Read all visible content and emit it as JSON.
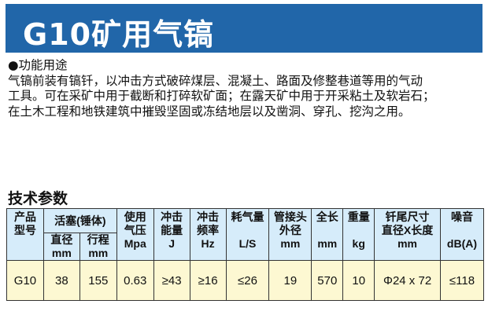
{
  "title": "G10矿用气镐",
  "function": {
    "heading": "●功能用途",
    "lines": [
      "气镐前装有镐钎，以冲击方式破碎煤层、混凝土、路面及修整巷道等用的气动",
      "工具。可在采矿中用于截断和打碎软矿面；在露天矿中用于开采粘土及软岩石；",
      "在土木工程和地铁建筑中摧毁坚固或冻结地层以及凿洞、穿孔、挖沟之用。"
    ]
  },
  "specs": {
    "heading": "技术参数",
    "headers": {
      "model": [
        "产品",
        "型号"
      ],
      "piston": "活塞(锤体)",
      "diameter": [
        "直径",
        "mm"
      ],
      "stroke": [
        "行程",
        "mm"
      ],
      "pressure": [
        "使用",
        "气压",
        "Mpa"
      ],
      "energy": [
        "冲击",
        "能量",
        "J"
      ],
      "frequency": [
        "冲击",
        "频率",
        "Hz"
      ],
      "air": [
        "耗气量",
        "L/S"
      ],
      "hose": [
        "管接头",
        "外径",
        "mm"
      ],
      "length": [
        "全长",
        "mm"
      ],
      "weight": [
        "重量",
        "kg"
      ],
      "shank": [
        "钎尾尺寸",
        "直径X长度",
        "mm"
      ],
      "noise": [
        "噪音",
        "dB(A)"
      ]
    },
    "rows": [
      [
        "G10",
        "38",
        "155",
        "0.63",
        "≥43",
        "≥16",
        "≤26",
        "19",
        "570",
        "10",
        "Φ24 x 72",
        "≤118"
      ]
    ]
  }
}
